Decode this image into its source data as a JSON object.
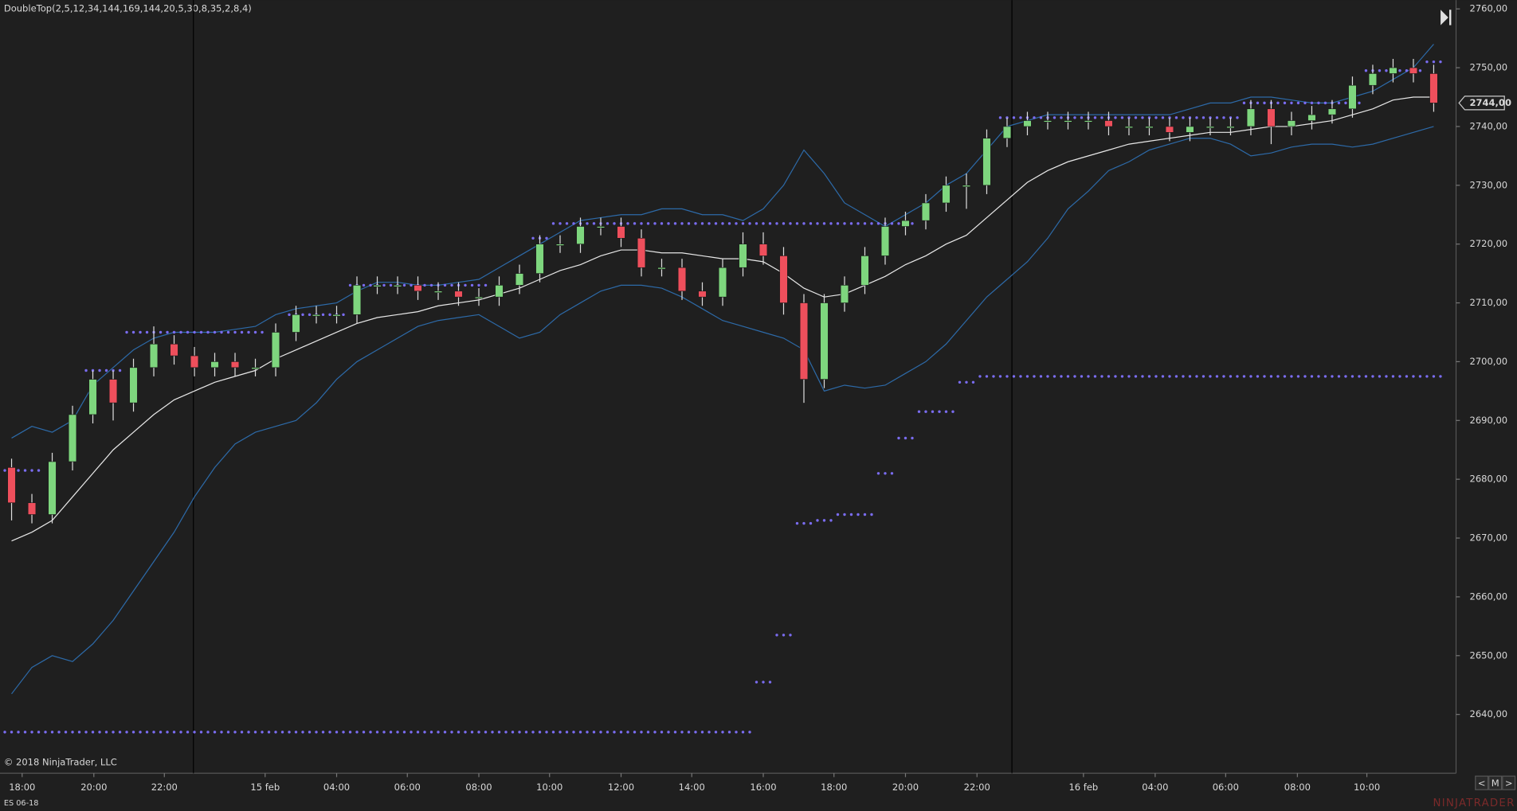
{
  "chart_data": {
    "type": "candlestick",
    "title": "DoubleTop(2,5,12,34,144,169,144,20,5,30,8,35,2,8,4)",
    "copyright": "© 2018 NinjaTrader, LLC",
    "instrument": "ES 06-18",
    "logo": "NINJATRADER",
    "nav_buttons": [
      "<",
      "M",
      ">"
    ],
    "background": "#1f1f1f",
    "up_color": "#7ed67e",
    "down_color": "#ee4f5c",
    "open": [
      2682,
      2676,
      2674,
      2683,
      2691,
      2697,
      2693,
      2699,
      2703,
      2701,
      2699,
      2700,
      2699,
      2699,
      2705,
      2708,
      2708,
      2708,
      2713,
      2713,
      2713,
      2712,
      2712,
      2711,
      2711,
      2713,
      2715,
      2720,
      2720,
      2723,
      2723,
      2721,
      2716,
      2716,
      2712,
      2711,
      2716,
      2720,
      2718,
      2710,
      2697,
      2710,
      2713,
      2718,
      2723,
      2724,
      2727,
      2730,
      2730,
      2738,
      2740,
      2741,
      2741,
      2741,
      2741,
      2740,
      2740,
      2740,
      2739,
      2740,
      2740,
      2740,
      2743,
      2740,
      2741,
      2742,
      2743,
      2747,
      2749,
      2750,
      2749
    ],
    "high": [
      2683.5,
      2677.5,
      2684.5,
      2692.5,
      2698.5,
      2698.5,
      2700.5,
      2706,
      2704.5,
      2702.5,
      2701.5,
      2701.5,
      2700.5,
      2706.5,
      2709.5,
      2709.5,
      2709.5,
      2714.5,
      2714.5,
      2714.5,
      2714.5,
      2713.5,
      2713.5,
      2712.5,
      2714.5,
      2716.5,
      2721.5,
      2721.5,
      2724.5,
      2724.5,
      2724.5,
      2722.5,
      2717.5,
      2717.5,
      2713.5,
      2717.5,
      2722,
      2722,
      2719.5,
      2711.5,
      2711.5,
      2714.5,
      2719.5,
      2724.5,
      2725.5,
      2728.5,
      2731.5,
      2732,
      2739.5,
      2741.5,
      2742.5,
      2742.5,
      2742.5,
      2742.5,
      2742.5,
      2741.5,
      2741.5,
      2741.5,
      2741.5,
      2741.5,
      2741.5,
      2744.5,
      2744.5,
      2742.5,
      2743.5,
      2744.5,
      2748.5,
      2750.5,
      2751.5,
      2751.5,
      2750.5
    ],
    "low": [
      2673,
      2672.5,
      2672.5,
      2681.5,
      2689.5,
      2690,
      2691.5,
      2697.5,
      2699.5,
      2697.5,
      2697.5,
      2697.5,
      2697.5,
      2697.5,
      2703.5,
      2706.5,
      2706.5,
      2706.5,
      2711.5,
      2711.5,
      2710.5,
      2710.5,
      2709.5,
      2709.5,
      2709.5,
      2711.5,
      2713.5,
      2718.5,
      2718.5,
      2721.5,
      2719.5,
      2714.5,
      2714.5,
      2710.5,
      2709.5,
      2709.5,
      2714.5,
      2716.5,
      2708,
      2693,
      2695.5,
      2708.5,
      2711.5,
      2716.5,
      2721.5,
      2722.5,
      2725.5,
      2726,
      2728.5,
      2736.5,
      2738.5,
      2739.5,
      2739.5,
      2739.5,
      2738.5,
      2738.5,
      2738.5,
      2737.5,
      2737.5,
      2738.5,
      2738.5,
      2738.5,
      2737,
      2738.5,
      2739.5,
      2740.5,
      2741.5,
      2745.5,
      2747.5,
      2747.5,
      2742.5
    ],
    "close": [
      2676,
      2674,
      2683,
      2691,
      2697,
      2693,
      2699,
      2703,
      2701,
      2699,
      2700,
      2699,
      2699,
      2705,
      2708,
      2708,
      2708,
      2713,
      2713,
      2713,
      2712,
      2712,
      2711,
      2711,
      2713,
      2715,
      2720,
      2720,
      2723,
      2723,
      2721,
      2716,
      2716,
      2712,
      2711,
      2716,
      2720,
      2718,
      2710,
      2697,
      2710,
      2713,
      2718,
      2723,
      2724,
      2727,
      2730,
      2730,
      2738,
      2740,
      2741,
      2741,
      2741,
      2741,
      2740,
      2740,
      2740,
      2739,
      2740,
      2740,
      2740,
      2743,
      2740,
      2741,
      2742,
      2743,
      2747,
      2749,
      2750,
      2749,
      2744
    ],
    "lines": [
      {
        "color": "#e8e8e8",
        "values": [
          2669.5,
          2671,
          2673,
          2677,
          2681,
          2685,
          2688,
          2691,
          2693.5,
          2695,
          2696.5,
          2697.5,
          2698.5,
          2700.5,
          2702,
          2703.5,
          2705,
          2706.5,
          2707.5,
          2708,
          2708.5,
          2709.5,
          2710,
          2710.5,
          2711.5,
          2712.5,
          2714,
          2715.5,
          2716.5,
          2718,
          2719,
          2719,
          2718.5,
          2718.5,
          2718,
          2717.5,
          2717.5,
          2717,
          2715,
          2712.5,
          2711,
          2711.5,
          2713,
          2714.5,
          2716.5,
          2718,
          2720,
          2721.5,
          2724.5,
          2727.5,
          2730.5,
          2732.5,
          2734,
          2735,
          2736,
          2737,
          2737.5,
          2738,
          2738.5,
          2739,
          2739,
          2739.5,
          2740,
          2740,
          2740.5,
          2741,
          2742,
          2743,
          2744.5,
          2745,
          2745
        ]
      },
      {
        "color": "#2d6aa8",
        "values": [
          2687,
          2689,
          2688,
          2690,
          2696,
          2699,
          2702,
          2704,
          2705,
          2705,
          2705,
          2705.5,
          2706,
          2708,
          2709,
          2709.5,
          2710,
          2712,
          2713.5,
          2713.5,
          2713,
          2713,
          2713.5,
          2714,
          2716,
          2718,
          2720,
          2722,
          2724,
          2724.5,
          2725,
          2725,
          2726,
          2726,
          2725,
          2725,
          2724,
          2726,
          2730,
          2736,
          2732,
          2727,
          2725,
          2723,
          2725,
          2727,
          2730,
          2732,
          2736,
          2740,
          2741,
          2742,
          2742,
          2742,
          2742,
          2742,
          2742,
          2742,
          2743,
          2744,
          2744,
          2745,
          2745,
          2744.5,
          2744,
          2744,
          2745,
          2746,
          2748,
          2750,
          2754
        ]
      },
      {
        "color": "#2d6aa8",
        "values": [
          2643.5,
          2648,
          2650,
          2649,
          2652,
          2656,
          2661,
          2666,
          2671,
          2677,
          2682,
          2686,
          2688,
          2689,
          2690,
          2693,
          2697,
          2700,
          2702,
          2704,
          2706,
          2707,
          2707.5,
          2708,
          2706,
          2704,
          2705,
          2708,
          2710,
          2712,
          2713,
          2713,
          2712.5,
          2711,
          2709,
          2707,
          2706,
          2705,
          2704,
          2702,
          2695,
          2696,
          2695.5,
          2696,
          2698,
          2700,
          2703,
          2707,
          2711,
          2714,
          2717,
          2721,
          2726,
          2729,
          2732.5,
          2734,
          2736,
          2737,
          2738,
          2738,
          2737,
          2735,
          2735.5,
          2736.5,
          2737,
          2737,
          2736.5,
          2737,
          2738,
          2739,
          2740
        ]
      }
    ],
    "levels": [
      {
        "color": "#7a6cf0",
        "values": [
          2637,
          2637,
          2637,
          2637,
          2637,
          2637,
          2637,
          2637,
          2637,
          2637,
          2637,
          2637,
          2637,
          2637,
          2637,
          2637,
          2637,
          2637,
          2637,
          2637,
          2637,
          2637,
          2637,
          2637,
          2637,
          2637,
          2637,
          2637,
          2637,
          2637,
          2637,
          2637,
          2637,
          2637,
          2637,
          2637,
          2637,
          2645.5,
          2653.5,
          2672.5,
          2673,
          2674,
          2674,
          2681,
          2687,
          2691.5,
          2691.5,
          2696.5,
          2697.5,
          2697.5,
          2697.5,
          2697.5,
          2697.5,
          2697.5,
          2697.5,
          2697.5,
          2697.5,
          2697.5,
          2697.5,
          2697.5,
          2697.5,
          2697.5,
          2697.5,
          2697.5,
          2697.5,
          2697.5,
          2697.5,
          2697.5,
          2697.5,
          2697.5,
          2697.5
        ]
      },
      {
        "color": "#7a6cf0",
        "values": [
          2681.5,
          2681.5,
          null,
          null,
          2698.5,
          2698.5,
          2705,
          2705,
          2705,
          2705,
          2705,
          2705,
          2705,
          null,
          2708,
          2708,
          2708,
          2713,
          2713,
          2713,
          2713,
          2713,
          2713,
          2713,
          null,
          null,
          2721,
          2723.5,
          2723.5,
          2723.5,
          2723.5,
          2723.5,
          2723.5,
          2723.5,
          2723.5,
          2723.5,
          2723.5,
          2723.5,
          2723.5,
          2723.5,
          2723.5,
          2723.5,
          2723.5,
          2723.5,
          2723.5,
          null,
          null,
          null,
          null,
          2741.5,
          2741.5,
          2741.5,
          2741.5,
          2741.5,
          2741.5,
          2741.5,
          2741.5,
          2741.5,
          2741.5,
          2741.5,
          2741.5,
          2744,
          2744,
          2744,
          2744,
          2744,
          2744,
          2749.5,
          2749.5,
          2749.5,
          2751
        ]
      }
    ],
    "session_lines": [
      8.95,
      49.24
    ],
    "last_price": {
      "value": 2744,
      "label": "2744,00"
    },
    "xlim": [
      -0.57,
      71.1
    ],
    "xticks": [
      {
        "value": 0.52,
        "label": "18:00"
      },
      {
        "value": 4.05,
        "label": "20:00"
      },
      {
        "value": 7.52,
        "label": "22:00"
      },
      {
        "value": 12.48,
        "label": "15 feb"
      },
      {
        "value": 16,
        "label": "04:00"
      },
      {
        "value": 19.48,
        "label": "06:00"
      },
      {
        "value": 23,
        "label": "08:00"
      },
      {
        "value": 26.48,
        "label": "10:00"
      },
      {
        "value": 30,
        "label": "12:00"
      },
      {
        "value": 33.48,
        "label": "14:00"
      },
      {
        "value": 37,
        "label": "16:00"
      },
      {
        "value": 40.48,
        "label": "18:00"
      },
      {
        "value": 44,
        "label": "20:00"
      },
      {
        "value": 47.52,
        "label": "22:00"
      },
      {
        "value": 52.76,
        "label": "16 feb"
      },
      {
        "value": 56.29,
        "label": "04:00"
      },
      {
        "value": 59.76,
        "label": "06:00"
      },
      {
        "value": 63.29,
        "label": "08:00"
      },
      {
        "value": 66.71,
        "label": "10:00"
      }
    ],
    "ylim": [
      2630,
      2761.5
    ],
    "yticks": [
      {
        "value": 2640,
        "label": "2640,00"
      },
      {
        "value": 2650,
        "label": "2650,00"
      },
      {
        "value": 2660,
        "label": "2660,00"
      },
      {
        "value": 2670,
        "label": "2670,00"
      },
      {
        "value": 2680,
        "label": "2680,00"
      },
      {
        "value": 2690,
        "label": "2690,00"
      },
      {
        "value": 2700,
        "label": "2700,00"
      },
      {
        "value": 2710,
        "label": "2710,00"
      },
      {
        "value": 2720,
        "label": "2720,00"
      },
      {
        "value": 2730,
        "label": "2730,00"
      },
      {
        "value": 2740,
        "label": "2740,00"
      },
      {
        "value": 2750,
        "label": "2750,00"
      },
      {
        "value": 2760,
        "label": "2760,00"
      }
    ]
  }
}
